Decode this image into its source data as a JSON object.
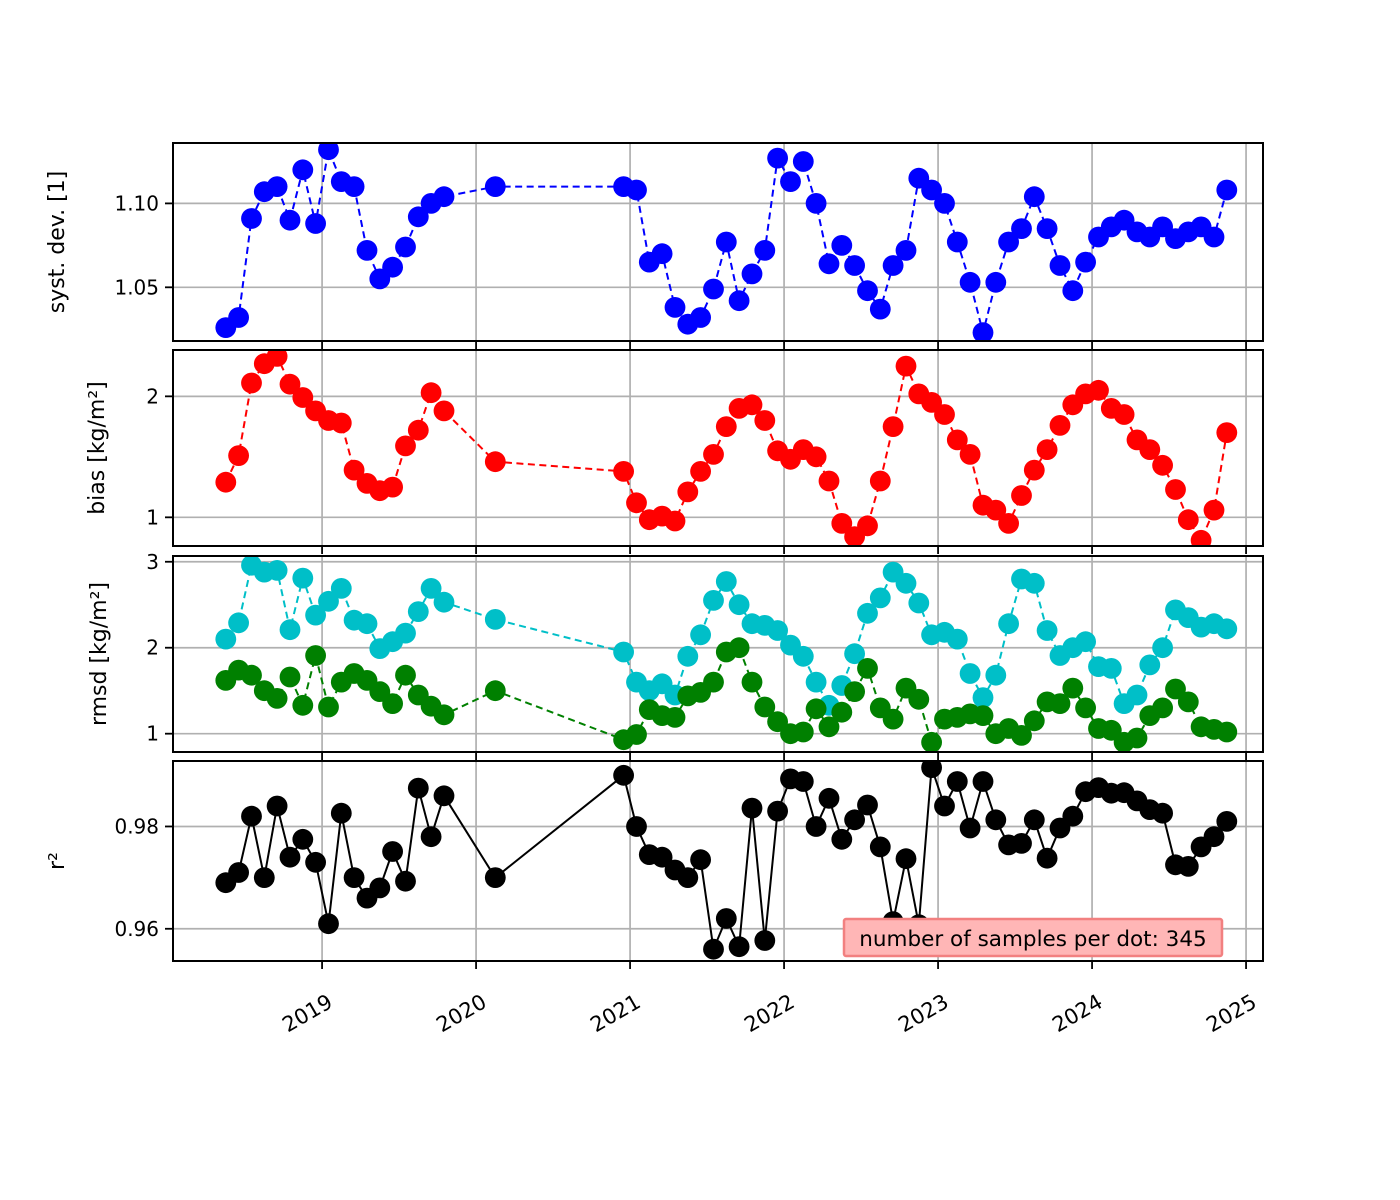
{
  "figure": {
    "background": "#ffffff"
  },
  "style": {
    "grid_color": "#b0b0b0",
    "frame_color": "#000000",
    "tick_color": "#000000"
  },
  "annotation": {
    "text": "number of samples per dot: 345",
    "bg": "#ffb6b6",
    "border": "#f28080",
    "text_color": "#000000"
  },
  "x_axis": {
    "tick_labels": [
      "2019",
      "2020",
      "2021",
      "2022",
      "2023",
      "2024",
      "2025"
    ],
    "tick_values": [
      2019,
      2020,
      2021,
      2022,
      2023,
      2024,
      2025
    ],
    "range": [
      2018.032,
      2025.11
    ]
  },
  "chart_data": {
    "type": "line",
    "title": "",
    "legend_position": "none",
    "grid": true,
    "x": [
      2018.375,
      2018.458,
      2018.542,
      2018.625,
      2018.708,
      2018.792,
      2018.875,
      2018.958,
      2019.042,
      2019.125,
      2019.208,
      2019.292,
      2019.375,
      2019.458,
      2019.542,
      2019.625,
      2019.708,
      2019.792,
      2020.125,
      2020.958,
      2021.042,
      2021.125,
      2021.208,
      2021.292,
      2021.375,
      2021.458,
      2021.542,
      2021.625,
      2021.708,
      2021.792,
      2021.875,
      2021.958,
      2022.042,
      2022.125,
      2022.208,
      2022.292,
      2022.375,
      2022.458,
      2022.542,
      2022.625,
      2022.708,
      2022.792,
      2022.875,
      2022.958,
      2023.042,
      2023.125,
      2023.208,
      2023.292,
      2023.375,
      2023.458,
      2023.542,
      2023.625,
      2023.708,
      2023.792,
      2023.875,
      2023.958,
      2024.042,
      2024.125,
      2024.208,
      2024.292,
      2024.375,
      2024.458,
      2024.542,
      2024.625,
      2024.708,
      2024.792,
      2024.875
    ],
    "panels": [
      {
        "id": "syst-dev",
        "ylabel": "syst. dev. [1]",
        "yticks": [
          1.1,
          1.05
        ],
        "ytick_labels": [
          "1.10",
          "1.05"
        ],
        "ylim": [
          1.018,
          1.136
        ],
        "series": [
          {
            "name": "syst-dev",
            "color": "#0000ff",
            "dashed": true,
            "values": [
              1.026,
              1.032,
              1.091,
              1.107,
              1.11,
              1.09,
              1.12,
              1.088,
              1.132,
              1.113,
              1.11,
              1.072,
              1.055,
              1.062,
              1.074,
              1.092,
              1.1,
              1.104,
              1.11,
              1.11,
              1.108,
              1.065,
              1.07,
              1.038,
              1.028,
              1.032,
              1.049,
              1.077,
              1.042,
              1.058,
              1.072,
              1.127,
              1.113,
              1.125,
              1.1,
              1.064,
              1.075,
              1.063,
              1.048,
              1.037,
              1.063,
              1.072,
              1.115,
              1.108,
              1.1,
              1.077,
              1.053,
              1.023,
              1.053,
              1.077,
              1.085,
              1.104,
              1.085,
              1.063,
              1.048,
              1.065,
              1.08,
              1.086,
              1.09,
              1.083,
              1.08,
              1.086,
              1.079,
              1.083,
              1.086,
              1.08,
              1.108
            ]
          }
        ]
      },
      {
        "id": "bias",
        "ylabel": "bias [kg/m²]",
        "yticks": [
          2,
          1
        ],
        "ytick_labels": [
          "2",
          "1"
        ],
        "ylim": [
          0.763,
          2.383
        ],
        "series": [
          {
            "name": "bias",
            "color": "#ff0000",
            "dashed": true,
            "values": [
              1.29,
              1.51,
              2.11,
              2.27,
              2.33,
              2.1,
              1.99,
              1.88,
              1.8,
              1.78,
              1.39,
              1.28,
              1.22,
              1.25,
              1.59,
              1.72,
              2.03,
              1.88,
              1.46,
              1.38,
              1.12,
              0.98,
              1.01,
              0.97,
              1.21,
              1.38,
              1.52,
              1.75,
              1.9,
              1.93,
              1.8,
              1.55,
              1.48,
              1.56,
              1.5,
              1.3,
              0.95,
              0.84,
              0.93,
              1.3,
              1.75,
              2.25,
              2.02,
              1.95,
              1.85,
              1.64,
              1.52,
              1.1,
              1.06,
              0.95,
              1.18,
              1.39,
              1.56,
              1.76,
              1.93,
              2.02,
              2.05,
              1.9,
              1.85,
              1.64,
              1.56,
              1.43,
              1.23,
              0.98,
              0.81,
              1.06,
              1.7
            ]
          }
        ]
      },
      {
        "id": "rmsd",
        "ylabel": "rmsd [kg/m²]",
        "yticks": [
          3,
          2,
          1
        ],
        "ytick_labels": [
          "3",
          "2",
          "1"
        ],
        "ylim": [
          0.787,
          3.067
        ],
        "series": [
          {
            "name": "rmsd-cyan",
            "color": "#00bfc8",
            "dashed": true,
            "values": [
              2.1,
              2.29,
              2.96,
              2.88,
              2.9,
              2.21,
              2.81,
              2.38,
              2.54,
              2.69,
              2.32,
              2.28,
              1.99,
              2.07,
              2.17,
              2.42,
              2.69,
              2.53,
              2.33,
              1.95,
              1.6,
              1.5,
              1.58,
              1.45,
              1.9,
              2.15,
              2.55,
              2.77,
              2.5,
              2.28,
              2.26,
              2.2,
              2.03,
              1.9,
              1.6,
              1.33,
              1.56,
              1.93,
              2.4,
              2.58,
              2.88,
              2.75,
              2.52,
              2.15,
              2.18,
              2.1,
              1.7,
              1.42,
              1.68,
              2.28,
              2.8,
              2.75,
              2.2,
              1.91,
              2.0,
              2.07,
              1.78,
              1.76,
              1.35,
              1.45,
              1.8,
              2.0,
              2.44,
              2.35,
              2.24,
              2.28,
              2.22
            ]
          },
          {
            "name": "rmsd-green",
            "color": "#008000",
            "dashed": true,
            "values": [
              1.62,
              1.74,
              1.68,
              1.5,
              1.41,
              1.66,
              1.33,
              1.91,
              1.31,
              1.6,
              1.7,
              1.62,
              1.49,
              1.35,
              1.68,
              1.45,
              1.32,
              1.22,
              1.5,
              0.93,
              0.99,
              1.28,
              1.21,
              1.19,
              1.44,
              1.48,
              1.6,
              1.95,
              2.0,
              1.6,
              1.31,
              1.14,
              1.0,
              1.02,
              1.29,
              1.08,
              1.25,
              1.49,
              1.76,
              1.3,
              1.17,
              1.53,
              1.4,
              0.9,
              1.17,
              1.19,
              1.23,
              1.21,
              1.0,
              1.06,
              0.98,
              1.15,
              1.37,
              1.35,
              1.53,
              1.3,
              1.06,
              1.04,
              0.9,
              0.95,
              1.21,
              1.3,
              1.52,
              1.37,
              1.08,
              1.05,
              1.02
            ]
          }
        ]
      },
      {
        "id": "r2",
        "ylabel": "r²",
        "yticks": [
          0.98,
          0.96
        ],
        "ytick_labels": [
          "0.98",
          "0.96"
        ],
        "ylim": [
          0.9537,
          0.9928
        ],
        "series": [
          {
            "name": "r2",
            "color": "#000000",
            "dashed": false,
            "values": [
              0.969,
              0.971,
              0.982,
              0.97,
              0.984,
              0.974,
              0.9775,
              0.973,
              0.961,
              0.9826,
              0.97,
              0.966,
              0.968,
              0.9751,
              0.9693,
              0.9875,
              0.978,
              0.986,
              0.97,
              0.99,
              0.98,
              0.9745,
              0.974,
              0.9715,
              0.97,
              0.9735,
              0.956,
              0.962,
              0.9565,
              0.9836,
              0.9577,
              0.983,
              0.9893,
              0.9888,
              0.98,
              0.9855,
              0.9775,
              0.9813,
              0.9842,
              0.976,
              0.9614,
              0.9737,
              0.9608,
              0.9915,
              0.984,
              0.9888,
              0.9797,
              0.9888,
              0.9813,
              0.9764,
              0.9767,
              0.9813,
              0.9738,
              0.9797,
              0.982,
              0.9868,
              0.9876,
              0.9865,
              0.9866,
              0.985,
              0.9833,
              0.9826,
              0.9725,
              0.9722,
              0.976,
              0.978,
              0.981
            ]
          }
        ]
      }
    ]
  }
}
